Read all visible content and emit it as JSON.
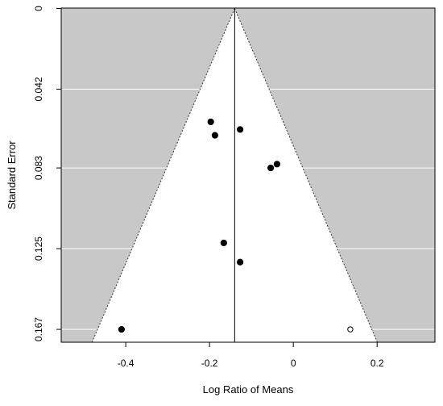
{
  "chart_data": {
    "type": "scatter",
    "title": "",
    "xlabel": "Log Ratio of Means",
    "ylabel": "Standard Error",
    "x_ticks": [
      -0.4,
      -0.2,
      0,
      0.2
    ],
    "x_tick_labels": [
      "-0.4",
      "-0.2",
      "0",
      "0.2"
    ],
    "y_ticks": [
      0,
      0.042,
      0.083,
      0.125,
      0.167
    ],
    "y_tick_labels": [
      "0",
      "0.042",
      "0.083",
      "0.125",
      "0.167"
    ],
    "xlim": [
      -0.554,
      0.338
    ],
    "ylim": [
      0.1737,
      -0.0002
    ],
    "y_reversed": true,
    "grid": true,
    "center_estimate": -0.14,
    "funnel_max_se": 0.1737,
    "series": [
      {
        "marker": "filled",
        "points": [
          {
            "x": -0.197,
            "y": 0.059
          },
          {
            "x": -0.187,
            "y": 0.066
          },
          {
            "x": -0.127,
            "y": 0.063
          },
          {
            "x": -0.054,
            "y": 0.083
          },
          {
            "x": -0.039,
            "y": 0.081
          },
          {
            "x": -0.166,
            "y": 0.122
          },
          {
            "x": -0.127,
            "y": 0.132
          },
          {
            "x": -0.41,
            "y": 0.167
          }
        ]
      },
      {
        "marker": "open",
        "points": [
          {
            "x": 0.136,
            "y": 0.167
          }
        ]
      }
    ],
    "colors": {
      "background": "#c8c8c8",
      "funnel": "#ffffff",
      "grid": "#ffffff",
      "points": "#000000",
      "axis": "#000000"
    }
  }
}
